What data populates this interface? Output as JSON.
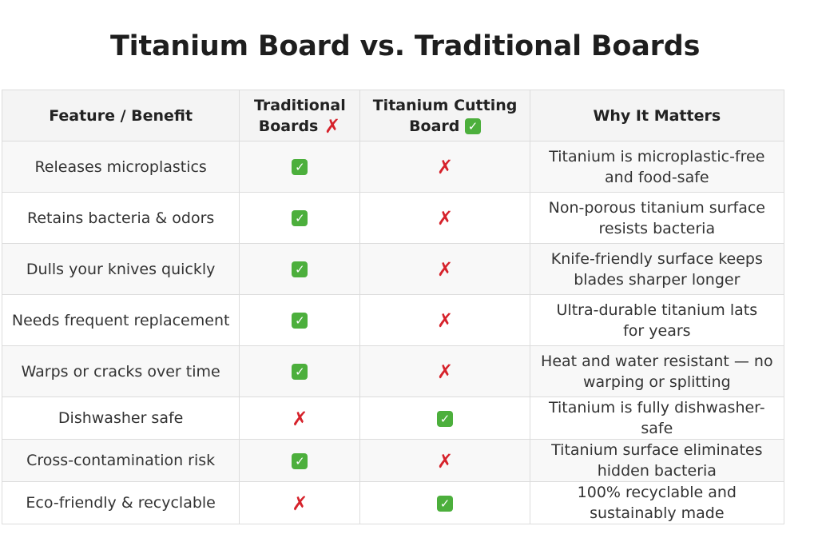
{
  "title": "Titanium Board vs. Traditional Boards",
  "table": {
    "headers": {
      "feature": "Feature / Benefit",
      "traditional": "Traditional Boards",
      "titanium": "Titanium Cutting Board",
      "why": "Why It Matters"
    },
    "header_marks": {
      "traditional": "cross-mark-icon",
      "titanium": "check-mark-icon"
    },
    "rows": [
      {
        "feature": "Releases microplastics",
        "traditional": "yes",
        "titanium": "no",
        "why_line1": "Titanium is microplastic-free",
        "why_line2": "and food-safe"
      },
      {
        "feature": "Retains bacteria & odors",
        "traditional": "yes",
        "titanium": "no",
        "why_line1": "Non-porous titanium surface",
        "why_line2": "resists bacteria"
      },
      {
        "feature": "Dulls your knives quickly",
        "traditional": "yes",
        "titanium": "no",
        "why_line1": "Knife-friendly surface keeps",
        "why_line2": "blades sharper longer"
      },
      {
        "feature": "Needs frequent replacement",
        "traditional": "yes",
        "titanium": "no",
        "why_line1": "Ultra-durable titanium lats",
        "why_line2": "for years"
      },
      {
        "feature": "Warps or cracks over time",
        "traditional": "yes",
        "titanium": "no",
        "why_line1": "Heat and water resistant — no",
        "why_line2": "warping or splitting"
      },
      {
        "feature": "Dishwasher safe",
        "traditional": "no",
        "titanium": "yes",
        "why_line1": "Titanium is fully dishwasher-safe",
        "why_line2": ""
      },
      {
        "feature": "Cross-contamination risk",
        "traditional": "yes",
        "titanium": "no",
        "why_line1": "Titanium surface eliminates",
        "why_line2": "hidden bacteria"
      },
      {
        "feature": "Eco-friendly & recyclable",
        "traditional": "no",
        "titanium": "yes",
        "why_line1": "100% recyclable and",
        "why_line2": "sustainably made"
      }
    ]
  },
  "colors": {
    "check_green": "#4caf3c",
    "cross_red": "#d6222b",
    "header_bg": "#f4f4f4",
    "border": "#dcdcdc"
  }
}
